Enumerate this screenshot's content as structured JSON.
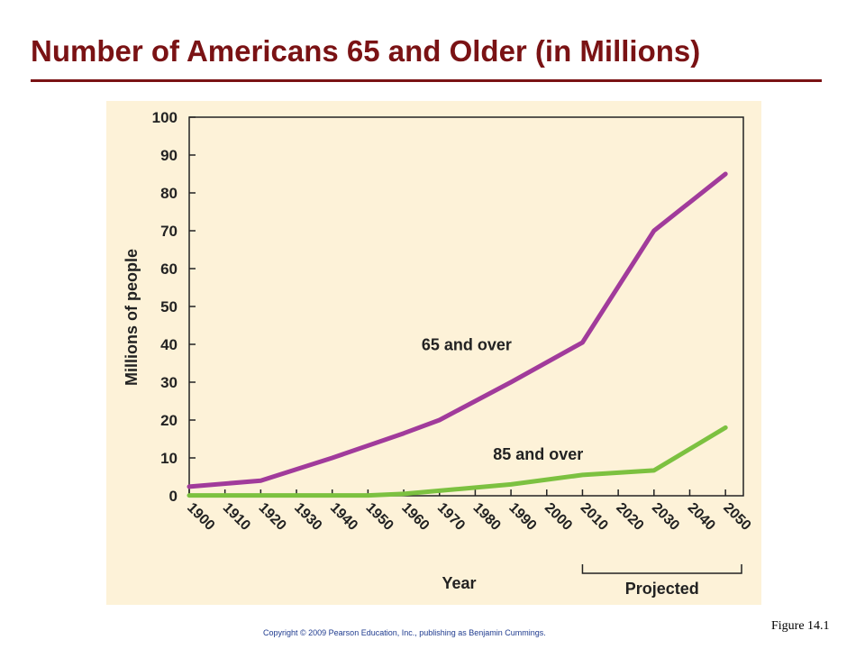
{
  "slide": {
    "title": "Number of Americans 65 and Older (in Millions)",
    "copyright": "Copyright © 2009 Pearson Education, Inc., publishing as Benjamin Cummings.",
    "figure_label": "Figure 14.1"
  },
  "chart_data": {
    "type": "line",
    "title": "",
    "xlabel": "Year",
    "ylabel": "Millions of people",
    "x": [
      1900,
      1910,
      1920,
      1930,
      1940,
      1950,
      1960,
      1970,
      1980,
      1990,
      2000,
      2010,
      2020,
      2030,
      2040,
      2050
    ],
    "x_tick_labels": [
      "1900",
      "1910",
      "1920",
      "1930",
      "1940",
      "1950",
      "1960",
      "1970",
      "1980",
      "1990",
      "2000",
      "2010",
      "2020",
      "2030",
      "2040",
      "2050"
    ],
    "y_tick_labels": [
      "0",
      "10",
      "20",
      "30",
      "40",
      "50",
      "60",
      "70",
      "80",
      "90",
      "100"
    ],
    "xlim": [
      1900,
      2055
    ],
    "ylim": [
      0,
      100
    ],
    "grid": false,
    "projected_label": "Projected",
    "projected_range": [
      2010,
      2055
    ],
    "series": [
      {
        "name": "65 and over",
        "color": "#a13b9b",
        "x": [
          1900,
          1920,
          1940,
          1960,
          1970,
          1990,
          2010,
          2030,
          2050
        ],
        "values": [
          2.4,
          4,
          10,
          16.5,
          20,
          30,
          40.5,
          70,
          85
        ]
      },
      {
        "name": "85 and over",
        "color": "#7cc140",
        "x": [
          1900,
          1950,
          1960,
          1990,
          2010,
          2030,
          2050
        ],
        "values": [
          0.1,
          0.1,
          0.5,
          3,
          5.5,
          6.7,
          18
        ]
      }
    ]
  }
}
